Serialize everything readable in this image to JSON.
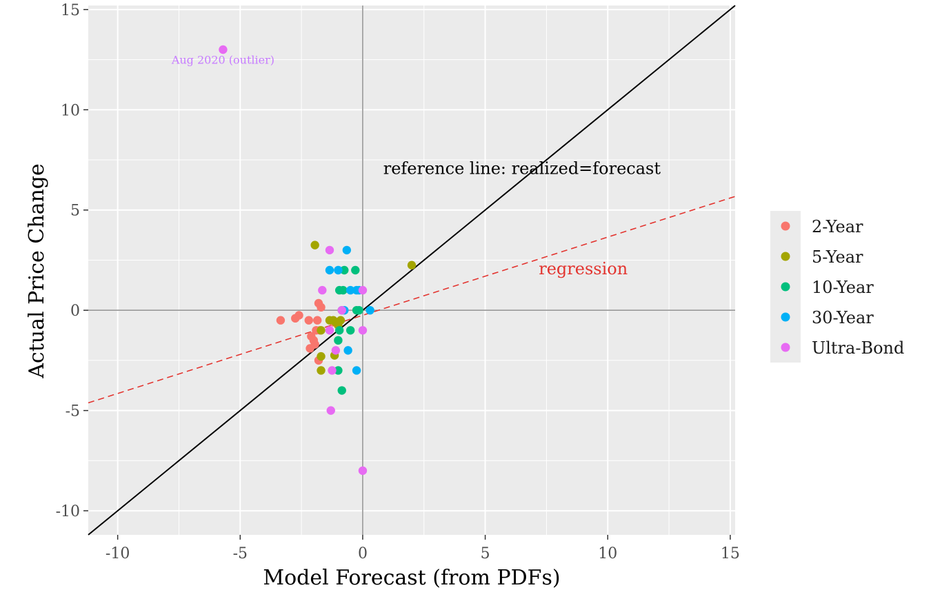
{
  "chart_data": {
    "type": "scatter",
    "title": "",
    "xlabel": "Model Forecast (from PDFs)",
    "ylabel": "Actual Price Change",
    "xlim": [
      -11.2,
      15.2
    ],
    "ylim": [
      -11.2,
      15.2
    ],
    "x_ticks": [
      -10,
      -5,
      0,
      5,
      10,
      15
    ],
    "x_tick_labels": [
      "-10",
      "-5",
      "0",
      "5",
      "10",
      "15"
    ],
    "y_ticks": [
      -10,
      -5,
      0,
      5,
      10,
      15
    ],
    "y_tick_labels": [
      "-10",
      "-5",
      "0",
      "5",
      "10",
      "15"
    ],
    "grid": true,
    "legend_position": "right",
    "background_color": "#ebebeb",
    "series": [
      {
        "name": "2-Year",
        "color": "#F8766D",
        "points": [
          [
            -3.35,
            -0.5
          ],
          [
            -2.75,
            -0.4
          ],
          [
            -2.6,
            -0.25
          ],
          [
            -2.2,
            -0.5
          ],
          [
            -2.1,
            -1.3
          ],
          [
            -2.0,
            -1.5
          ],
          [
            -1.95,
            -1.7
          ],
          [
            -1.85,
            -0.5
          ],
          [
            -1.8,
            0.35
          ],
          [
            -1.7,
            0.15
          ],
          [
            -1.9,
            -1.0
          ],
          [
            -2.15,
            -1.9
          ],
          [
            -1.8,
            -2.5
          ],
          [
            -1.75,
            -1.0
          ],
          [
            -1.2,
            -0.6
          ],
          [
            -0.95,
            -0.55
          ]
        ]
      },
      {
        "name": "5-Year",
        "color": "#A3A500",
        "points": [
          [
            -1.95,
            3.25
          ],
          [
            2.0,
            2.25
          ],
          [
            -1.7,
            -1.0
          ],
          [
            -1.35,
            -0.5
          ],
          [
            -1.2,
            -0.5
          ],
          [
            -1.15,
            -2.25
          ],
          [
            -1.1,
            -0.6
          ],
          [
            -1.0,
            -0.75
          ],
          [
            -0.9,
            -0.5
          ],
          [
            -1.7,
            -2.3
          ],
          [
            -1.7,
            -3.0
          ]
        ]
      },
      {
        "name": "10-Year",
        "color": "#00BF7D",
        "points": [
          [
            -0.75,
            2.0
          ],
          [
            -0.3,
            2.0
          ],
          [
            -0.95,
            1.0
          ],
          [
            -0.8,
            1.0
          ],
          [
            -0.85,
            0.0
          ],
          [
            -0.25,
            0.0
          ],
          [
            -0.15,
            0.0
          ],
          [
            -0.5,
            -1.0
          ],
          [
            -0.95,
            -1.0
          ],
          [
            -1.0,
            -1.5
          ],
          [
            -1.0,
            -3.0
          ],
          [
            -0.85,
            -4.0
          ]
        ]
      },
      {
        "name": "30-Year",
        "color": "#00B0F6",
        "points": [
          [
            -0.65,
            3.0
          ],
          [
            -1.35,
            2.0
          ],
          [
            -1.0,
            2.0
          ],
          [
            -0.5,
            1.0
          ],
          [
            -0.25,
            1.0
          ],
          [
            -0.15,
            1.0
          ],
          [
            -0.75,
            0.0
          ],
          [
            0.3,
            0.0
          ],
          [
            -0.6,
            -2.0
          ],
          [
            -0.25,
            -3.0
          ]
        ]
      },
      {
        "name": "Ultra-Bond",
        "color": "#E76BF3",
        "points": [
          [
            -5.7,
            13.0
          ],
          [
            -1.35,
            3.0
          ],
          [
            -1.65,
            1.0
          ],
          [
            0.0,
            1.0
          ],
          [
            -0.85,
            0.0
          ],
          [
            -1.1,
            -2.0
          ],
          [
            -1.25,
            -3.0
          ],
          [
            -1.3,
            -5.0
          ],
          [
            0.0,
            -1.0
          ],
          [
            -1.35,
            -1.0
          ],
          [
            0.0,
            -8.0
          ]
        ]
      }
    ],
    "reference_line": {
      "slope": 1,
      "intercept": 0,
      "color": "#000000"
    },
    "regression_line": {
      "slope": 0.39,
      "intercept": -0.25,
      "color": "#E3342F",
      "style": "dashed"
    },
    "annotations": [
      {
        "text": "Aug 2020 (outlier)",
        "x": -5.7,
        "y": 12.3,
        "color": "#C77CFF"
      },
      {
        "text": "reference line: realized=forecast",
        "x": 6.5,
        "y": 6.8,
        "color": "#000000"
      },
      {
        "text": "regression",
        "x": 9.0,
        "y": 1.8,
        "color": "#E3342F"
      }
    ]
  }
}
